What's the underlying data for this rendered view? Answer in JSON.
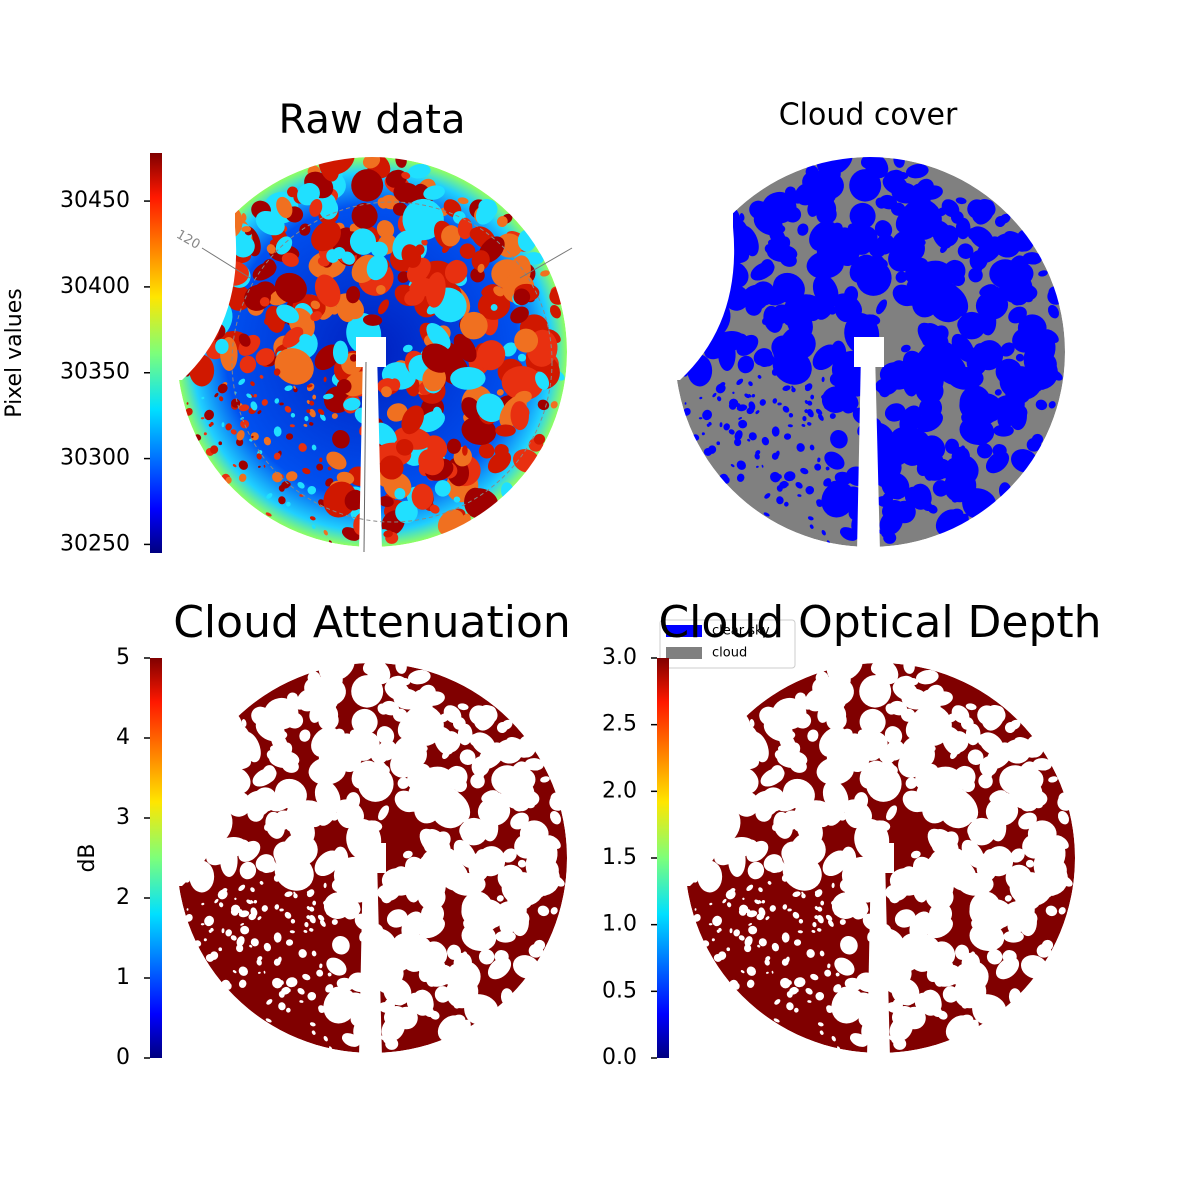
{
  "chart_data": [
    {
      "type": "image",
      "title": "Raw data",
      "colormap": "jet",
      "colorbar_label": "Pixel values",
      "ylim": [
        30245,
        30478
      ],
      "yticks": [
        30250,
        30300,
        30350,
        30400,
        30450
      ],
      "polar_labels": [
        "120"
      ]
    },
    {
      "type": "image",
      "title": "Cloud cover",
      "series": [
        {
          "name": "clear sky",
          "color": "#0000ff"
        },
        {
          "name": "cloud",
          "color": "#808080"
        }
      ]
    },
    {
      "type": "image",
      "title": "Cloud Attenuation",
      "colormap": "jet",
      "colorbar_label": "dB",
      "ylim": [
        0,
        5
      ],
      "yticks": [
        0,
        1,
        2,
        3,
        4,
        5
      ]
    },
    {
      "type": "image",
      "title": "Cloud Optical Depth",
      "colormap": "jet",
      "ylim": [
        0,
        3
      ],
      "yticks": [
        {
          "value": 0,
          "label": "0.0"
        },
        0.5,
        {
          "value": 1,
          "label": "1.0"
        },
        1.5,
        {
          "value": 2,
          "label": "2.0"
        },
        2.5,
        {
          "value": 3,
          "label": "3.0"
        }
      ]
    }
  ]
}
